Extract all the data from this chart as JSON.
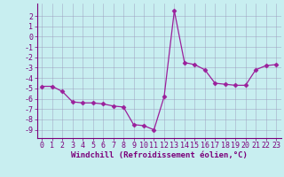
{
  "x": [
    0,
    1,
    2,
    3,
    4,
    5,
    6,
    7,
    8,
    9,
    10,
    11,
    12,
    13,
    14,
    15,
    16,
    17,
    18,
    19,
    20,
    21,
    22,
    23
  ],
  "y": [
    -4.8,
    -4.8,
    -5.3,
    -6.3,
    -6.4,
    -6.4,
    -6.5,
    -6.7,
    -6.8,
    -8.5,
    -8.6,
    -9.0,
    -5.8,
    2.5,
    -2.5,
    -2.7,
    -3.2,
    -4.5,
    -4.6,
    -4.7,
    -4.7,
    -3.2,
    -2.8,
    -2.7
  ],
  "line_color": "#9b1f9b",
  "marker": "D",
  "marker_size": 2.5,
  "bg_color": "#c8eef0",
  "grid_color": "#9999bb",
  "xlabel": "Windchill (Refroidissement éolien,°C)",
  "ylabel": "",
  "xlim": [
    -0.5,
    23.5
  ],
  "ylim": [
    -9.8,
    3.2
  ],
  "yticks": [
    2,
    1,
    0,
    -1,
    -2,
    -3,
    -4,
    -5,
    -6,
    -7,
    -8,
    -9
  ],
  "xticks": [
    0,
    1,
    2,
    3,
    4,
    5,
    6,
    7,
    8,
    9,
    10,
    11,
    12,
    13,
    14,
    15,
    16,
    17,
    18,
    19,
    20,
    21,
    22,
    23
  ],
  "font_color": "#7b007b",
  "label_fontsize": 6.5,
  "tick_fontsize": 6.0
}
